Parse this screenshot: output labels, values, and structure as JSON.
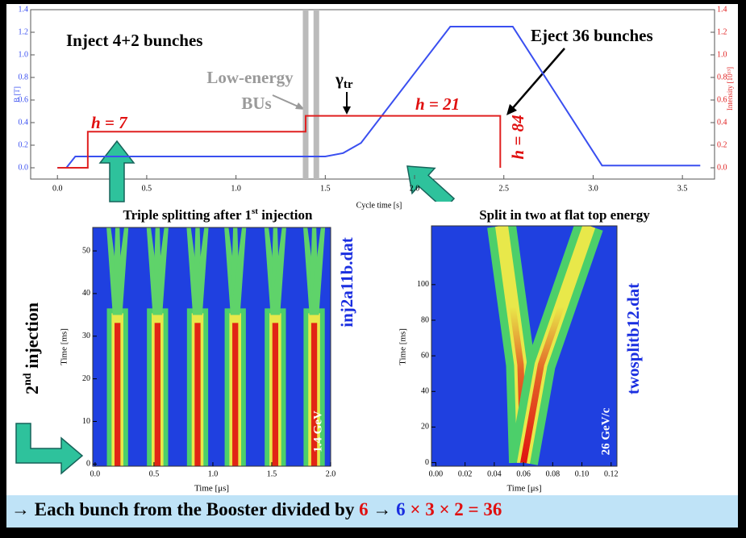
{
  "side_label": {
    "base": "2",
    "sup": "nd",
    "rest": " injection"
  },
  "caption": {
    "segments": [
      {
        "text": "→ Each bunch from the Booster divided by ",
        "color": "#000000"
      },
      {
        "text": "6",
        "color": "#e01010"
      },
      {
        "text": " → ",
        "color": "#000000"
      },
      {
        "text": "6",
        "color": "#1a2ee0"
      },
      {
        "text": " × 3 × 2 = 36",
        "color": "#e01010"
      }
    ]
  },
  "chart_data": [
    {
      "type": "line",
      "xlabel": "Cycle time [s]",
      "ylabel": "B [T]",
      "y2label": "Intensity [10¹³]",
      "annotations": {
        "inject": "Inject 4+2 bunches",
        "low_energy": "Low-energy",
        "bus": "BUs",
        "gamma": {
          "base": "γ",
          "sub": "tr"
        },
        "h7": "h = 7",
        "h21": "h = 21",
        "h84": "h = 84",
        "eject": "Eject 36 bunches"
      },
      "xlim": [
        -0.15,
        3.68
      ],
      "ylim": [
        -0.1,
        1.4
      ],
      "y2lim": [
        -0.1,
        1.4
      ],
      "xticks": [
        {
          "value": 0,
          "label": "0.0"
        },
        0.5,
        {
          "value": 1,
          "label": "1.0"
        },
        1.5,
        {
          "value": 2,
          "label": "2.0"
        },
        2.5,
        {
          "value": 3,
          "label": "3.0"
        },
        3.5
      ],
      "yticks": [
        {
          "value": 0,
          "label": "0.0"
        },
        0.2,
        0.4,
        0.6,
        0.8,
        {
          "value": 1,
          "label": "1.0"
        },
        1.2,
        1.4
      ],
      "y2ticks": [
        {
          "value": 0,
          "label": "0.0"
        },
        0.2,
        0.4,
        0.6,
        0.8,
        {
          "value": 1,
          "label": "1.0"
        },
        1.2,
        1.4
      ],
      "bands": [
        1.39,
        1.45
      ],
      "band_color": "#bbbbbb",
      "series": [
        {
          "color": "#3a4ff0",
          "x": [
            0,
            0.05,
            0.1,
            0.15,
            1.5,
            1.6,
            1.7,
            2.2,
            2.55,
            3.05,
            3.6
          ],
          "values": [
            0,
            0,
            0.1,
            0.1,
            0.1,
            0.13,
            0.22,
            1.25,
            1.25,
            0.02,
            0.02
          ]
        },
        {
          "color": "#e02020",
          "axis": "y2",
          "x": [
            0,
            0.17,
            0.17,
            1.39,
            1.39,
            2.48,
            2.48
          ],
          "values": [
            0,
            0,
            0.32,
            0.32,
            0.46,
            0.46,
            0
          ]
        }
      ]
    },
    {
      "type": "heatmap",
      "title": {
        "base": "Triple splitting after 1",
        "sup": "st",
        "rest": " injection"
      },
      "xlabel": "Time [μs]",
      "ylabel": "Time [ms]",
      "label": "1.4 GeV",
      "file": "inj2a11b.dat",
      "xlim": [
        -0.02,
        2.0
      ],
      "ylim": [
        -0.5,
        55.5
      ],
      "xticks": [
        {
          "value": 0,
          "label": "0.0"
        },
        0.5,
        {
          "value": 1,
          "label": "1.0"
        },
        1.5,
        {
          "value": 2,
          "label": "2.0"
        }
      ],
      "yticks": [
        0,
        10,
        20,
        30,
        40,
        50
      ],
      "bunches": [
        0.19,
        0.53,
        0.87,
        1.19,
        1.53,
        1.86
      ],
      "split_time": 35
    },
    {
      "type": "heatmap",
      "title": {
        "base": "Split in two at flat top energy"
      },
      "xlabel": "Time [μs]",
      "ylabel": "Time [ms]",
      "label": "26 GeV/c",
      "file": "twosplitb12.dat",
      "xlim": [
        -0.003,
        0.124
      ],
      "ylim": [
        -2,
        133
      ],
      "xticks": [
        {
          "value": 0,
          "label": "0.00"
        },
        0.02,
        0.04,
        0.06,
        0.08,
        {
          "value": 0.1,
          "label": "0.10"
        },
        0.12
      ],
      "yticks": [
        0,
        20,
        40,
        60,
        80,
        100
      ],
      "series": [
        {
          "x": [
            0.06,
            0.058,
            0.045
          ],
          "values": [
            0,
            55,
            133
          ]
        },
        {
          "x": [
            0.06,
            0.072,
            0.105
          ],
          "values": [
            0,
            55,
            133
          ]
        }
      ]
    }
  ]
}
